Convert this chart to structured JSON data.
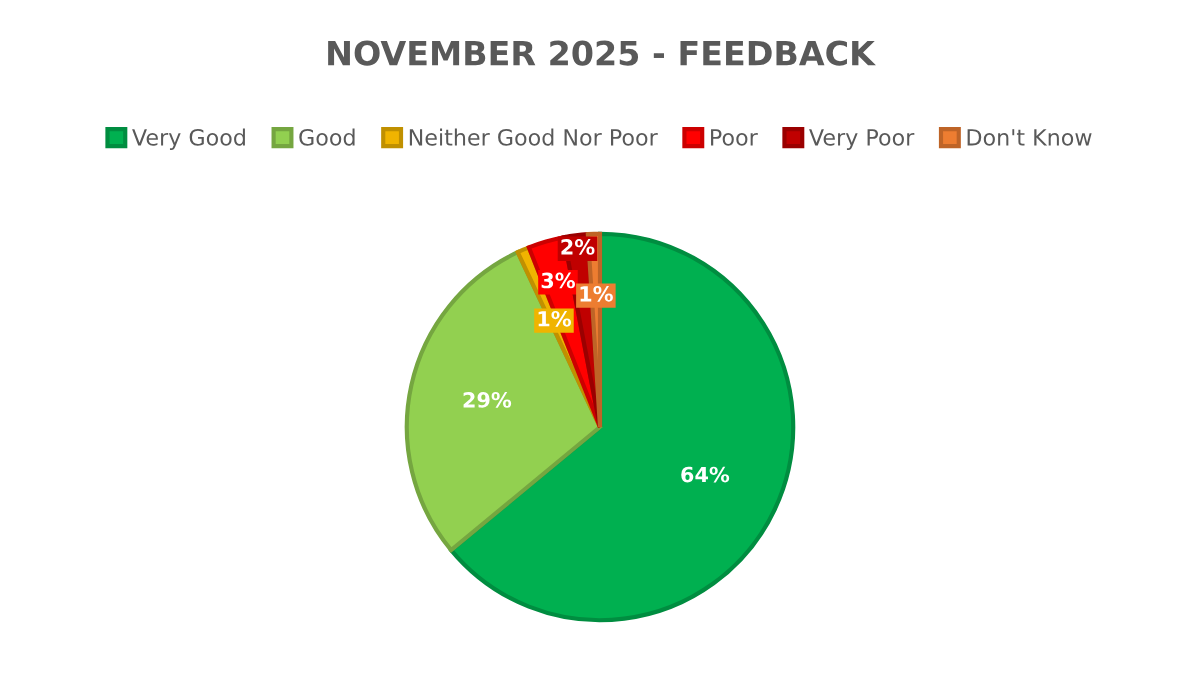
{
  "chart_data": {
    "type": "pie",
    "title": "NOVEMBER 2025 - FEEDBACK",
    "categories": [
      "Very Good",
      "Good",
      "Neither Good Nor Poor",
      "Poor",
      "Very Poor",
      "Don't Know"
    ],
    "values": [
      64,
      29,
      1,
      3,
      2,
      1
    ],
    "colors": [
      "#00b050",
      "#92d050",
      "#f0b400",
      "#ff0000",
      "#c00000",
      "#ed7d31"
    ],
    "value_labels": [
      "64%",
      "29%",
      "1%",
      "3%",
      "2%",
      "1%"
    ],
    "legend": "top"
  }
}
